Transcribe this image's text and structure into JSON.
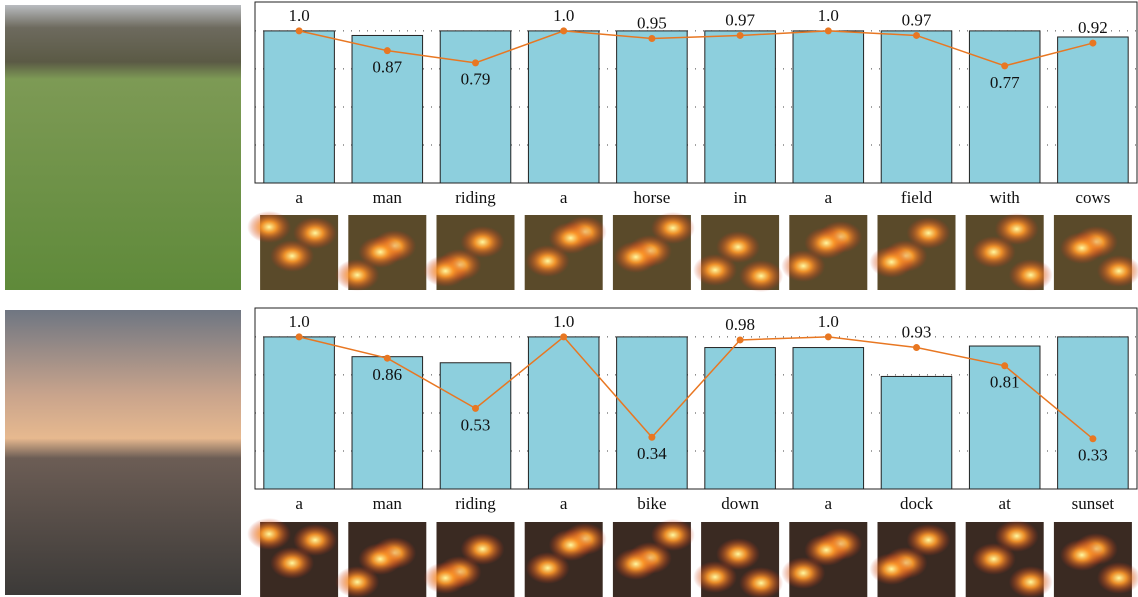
{
  "chart_data": [
    {
      "type": "bar",
      "categories": [
        "a",
        "man",
        "riding",
        "a",
        "horse",
        "in",
        "a",
        "field",
        "with",
        "cows"
      ],
      "series": [
        {
          "type": "bar",
          "color": "#8dcfdd",
          "values": [
            1.0,
            0.97,
            1.0,
            1.0,
            1.0,
            1.0,
            1.0,
            1.0,
            1.0,
            0.96
          ]
        },
        {
          "type": "line",
          "color": "#e87722",
          "values": [
            1.0,
            0.87,
            0.79,
            1.0,
            0.95,
            0.97,
            1.0,
            0.97,
            0.77,
            0.92
          ],
          "value_labels": [
            "1.0",
            "0.87",
            "0.79",
            "1.0",
            "0.95",
            "0.97",
            "1.0",
            "0.97",
            "0.77",
            "0.92"
          ]
        }
      ],
      "ylim": [
        0,
        1.19
      ],
      "yticks": [
        0.25,
        0.5,
        0.75,
        1.0
      ],
      "grid": true
    },
    {
      "type": "bar",
      "categories": [
        "a",
        "man",
        "riding",
        "a",
        "bike",
        "down",
        "a",
        "dock",
        "at",
        "sunset"
      ],
      "series": [
        {
          "type": "bar",
          "color": "#8dcfdd",
          "values": [
            1.0,
            0.87,
            0.83,
            1.0,
            1.0,
            0.93,
            0.93,
            0.74,
            0.94,
            1.0
          ]
        },
        {
          "type": "line",
          "color": "#e87722",
          "values": [
            1.0,
            0.86,
            0.53,
            1.0,
            0.34,
            0.98,
            1.0,
            0.93,
            0.81,
            0.33
          ],
          "value_labels": [
            "1.0",
            "0.86",
            "0.53",
            "1.0",
            "0.34",
            "0.98",
            "1.0",
            "0.93",
            "0.81",
            "0.33"
          ]
        }
      ],
      "ylim": [
        0,
        1.19
      ],
      "yticks": [
        0.25,
        0.5,
        0.75,
        1.0
      ],
      "grid": true
    }
  ]
}
